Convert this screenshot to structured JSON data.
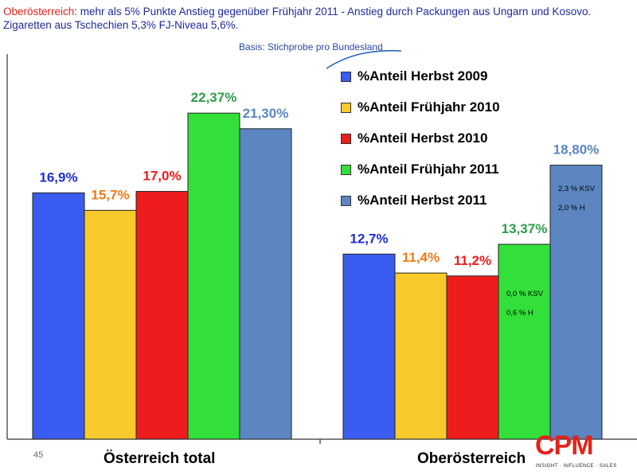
{
  "header": {
    "region": "Oberösterreich",
    "line1_rest": ": mehr als 5% Punkte Anstieg gegenüber Frühjahr 2011 - Anstieg durch Packungen aus Ungarn und Kosovo.",
    "line2": "Zigaretten aus Tschechien 5,3% FJ-Niveau 5,6%."
  },
  "basis": "Basis: Stichprobe pro Bundesland",
  "page_number": "45",
  "logo": {
    "text": "CPM",
    "tagline": "INSIGHT · INFLUENCE · SALES"
  },
  "colors": {
    "blue": "#3a5cf0",
    "yellow": "#f7c92b",
    "red": "#ee1c1c",
    "green": "#33e03a",
    "steel": "#5b86c2"
  },
  "chart_data": {
    "type": "bar",
    "categories": [
      "Österreich total",
      "Oberösterreich"
    ],
    "series": [
      {
        "name": "%Anteil Herbst 2009",
        "color": "#3a5cf0",
        "label_color": "#1f2fd0",
        "values": [
          16.9,
          12.7
        ],
        "labels": [
          "16,9%",
          "12,7%"
        ]
      },
      {
        "name": "%Anteil Frühjahr 2010",
        "color": "#f7c92b",
        "label_color": "#f07a16",
        "values": [
          15.7,
          11.4
        ],
        "labels": [
          "15,7%",
          "11,4%"
        ]
      },
      {
        "name": "%Anteil Herbst 2010",
        "color": "#ee1c1c",
        "label_color": "#ee1c1c",
        "values": [
          17.0,
          11.2
        ],
        "labels": [
          "17,0%",
          "11,2%"
        ]
      },
      {
        "name": "%Anteil Frühjahr 2011",
        "color": "#33e03a",
        "label_color": "#2e9e4a",
        "values": [
          22.37,
          13.37
        ],
        "labels": [
          "22,37%",
          "13,37%"
        ]
      },
      {
        "name": "%Anteil Herbst 2011",
        "color": "#5b86c2",
        "label_color": "#5b86c2",
        "values": [
          21.3,
          18.8
        ],
        "labels": [
          "21,30%",
          "18,80%"
        ]
      }
    ],
    "annotations": [
      {
        "category": "Oberösterreich",
        "series": "%Anteil Frühjahr 2011",
        "lines": [
          "0,0 % KSV",
          "0,6 % H"
        ]
      },
      {
        "category": "Oberösterreich",
        "series": "%Anteil Herbst 2011",
        "lines": [
          "2,3 % KSV",
          "2,0 % H"
        ]
      }
    ],
    "ylim": [
      0,
      25
    ],
    "grid": false,
    "legend_position": "top-right"
  }
}
